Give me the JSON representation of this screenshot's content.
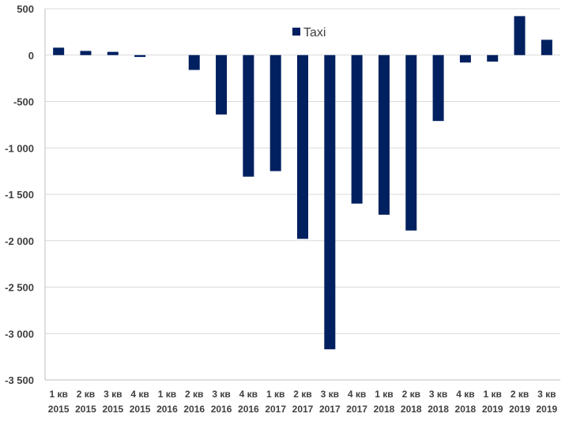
{
  "chart_data": {
    "type": "bar",
    "categories": [
      [
        "1 кв",
        "2015"
      ],
      [
        "2 кв",
        "2015"
      ],
      [
        "3 кв",
        "2015"
      ],
      [
        "4 кв",
        "2015"
      ],
      [
        "1 кв",
        "2016"
      ],
      [
        "2 кв",
        "2016"
      ],
      [
        "3 кв",
        "2016"
      ],
      [
        "4 кв",
        "2016"
      ],
      [
        "1 кв",
        "2017"
      ],
      [
        "2 кв",
        "2017"
      ],
      [
        "3 кв",
        "2017"
      ],
      [
        "4 кв",
        "2017"
      ],
      [
        "1 кв",
        "2018"
      ],
      [
        "2 кв",
        "2018"
      ],
      [
        "3 кв",
        "2018"
      ],
      [
        "4 кв",
        "2018"
      ],
      [
        "1 кв",
        "2019"
      ],
      [
        "2 кв",
        "2019"
      ],
      [
        "3 кв",
        "2019"
      ]
    ],
    "series": [
      {
        "name": "Taxi",
        "color": "#002060",
        "values": [
          80,
          45,
          35,
          -20,
          0,
          -160,
          -640,
          -1310,
          -1250,
          -1980,
          -3170,
          -1600,
          -1720,
          -1890,
          -710,
          -80,
          -70,
          420,
          165
        ]
      }
    ],
    "ylim": [
      -3500,
      500
    ],
    "yticks": [
      500,
      0,
      -500,
      -1000,
      -1500,
      -2000,
      -2500,
      -3000,
      -3500
    ],
    "ytick_labels": [
      "500",
      "0",
      "-500",
      "-1 000",
      "-1 500",
      "-2 000",
      "-2 500",
      "-3 000",
      "-3 500"
    ],
    "grid": true,
    "legend": {
      "position": "top-center",
      "entries": [
        "Taxi"
      ]
    },
    "title": "",
    "xlabel": "",
    "ylabel": ""
  }
}
